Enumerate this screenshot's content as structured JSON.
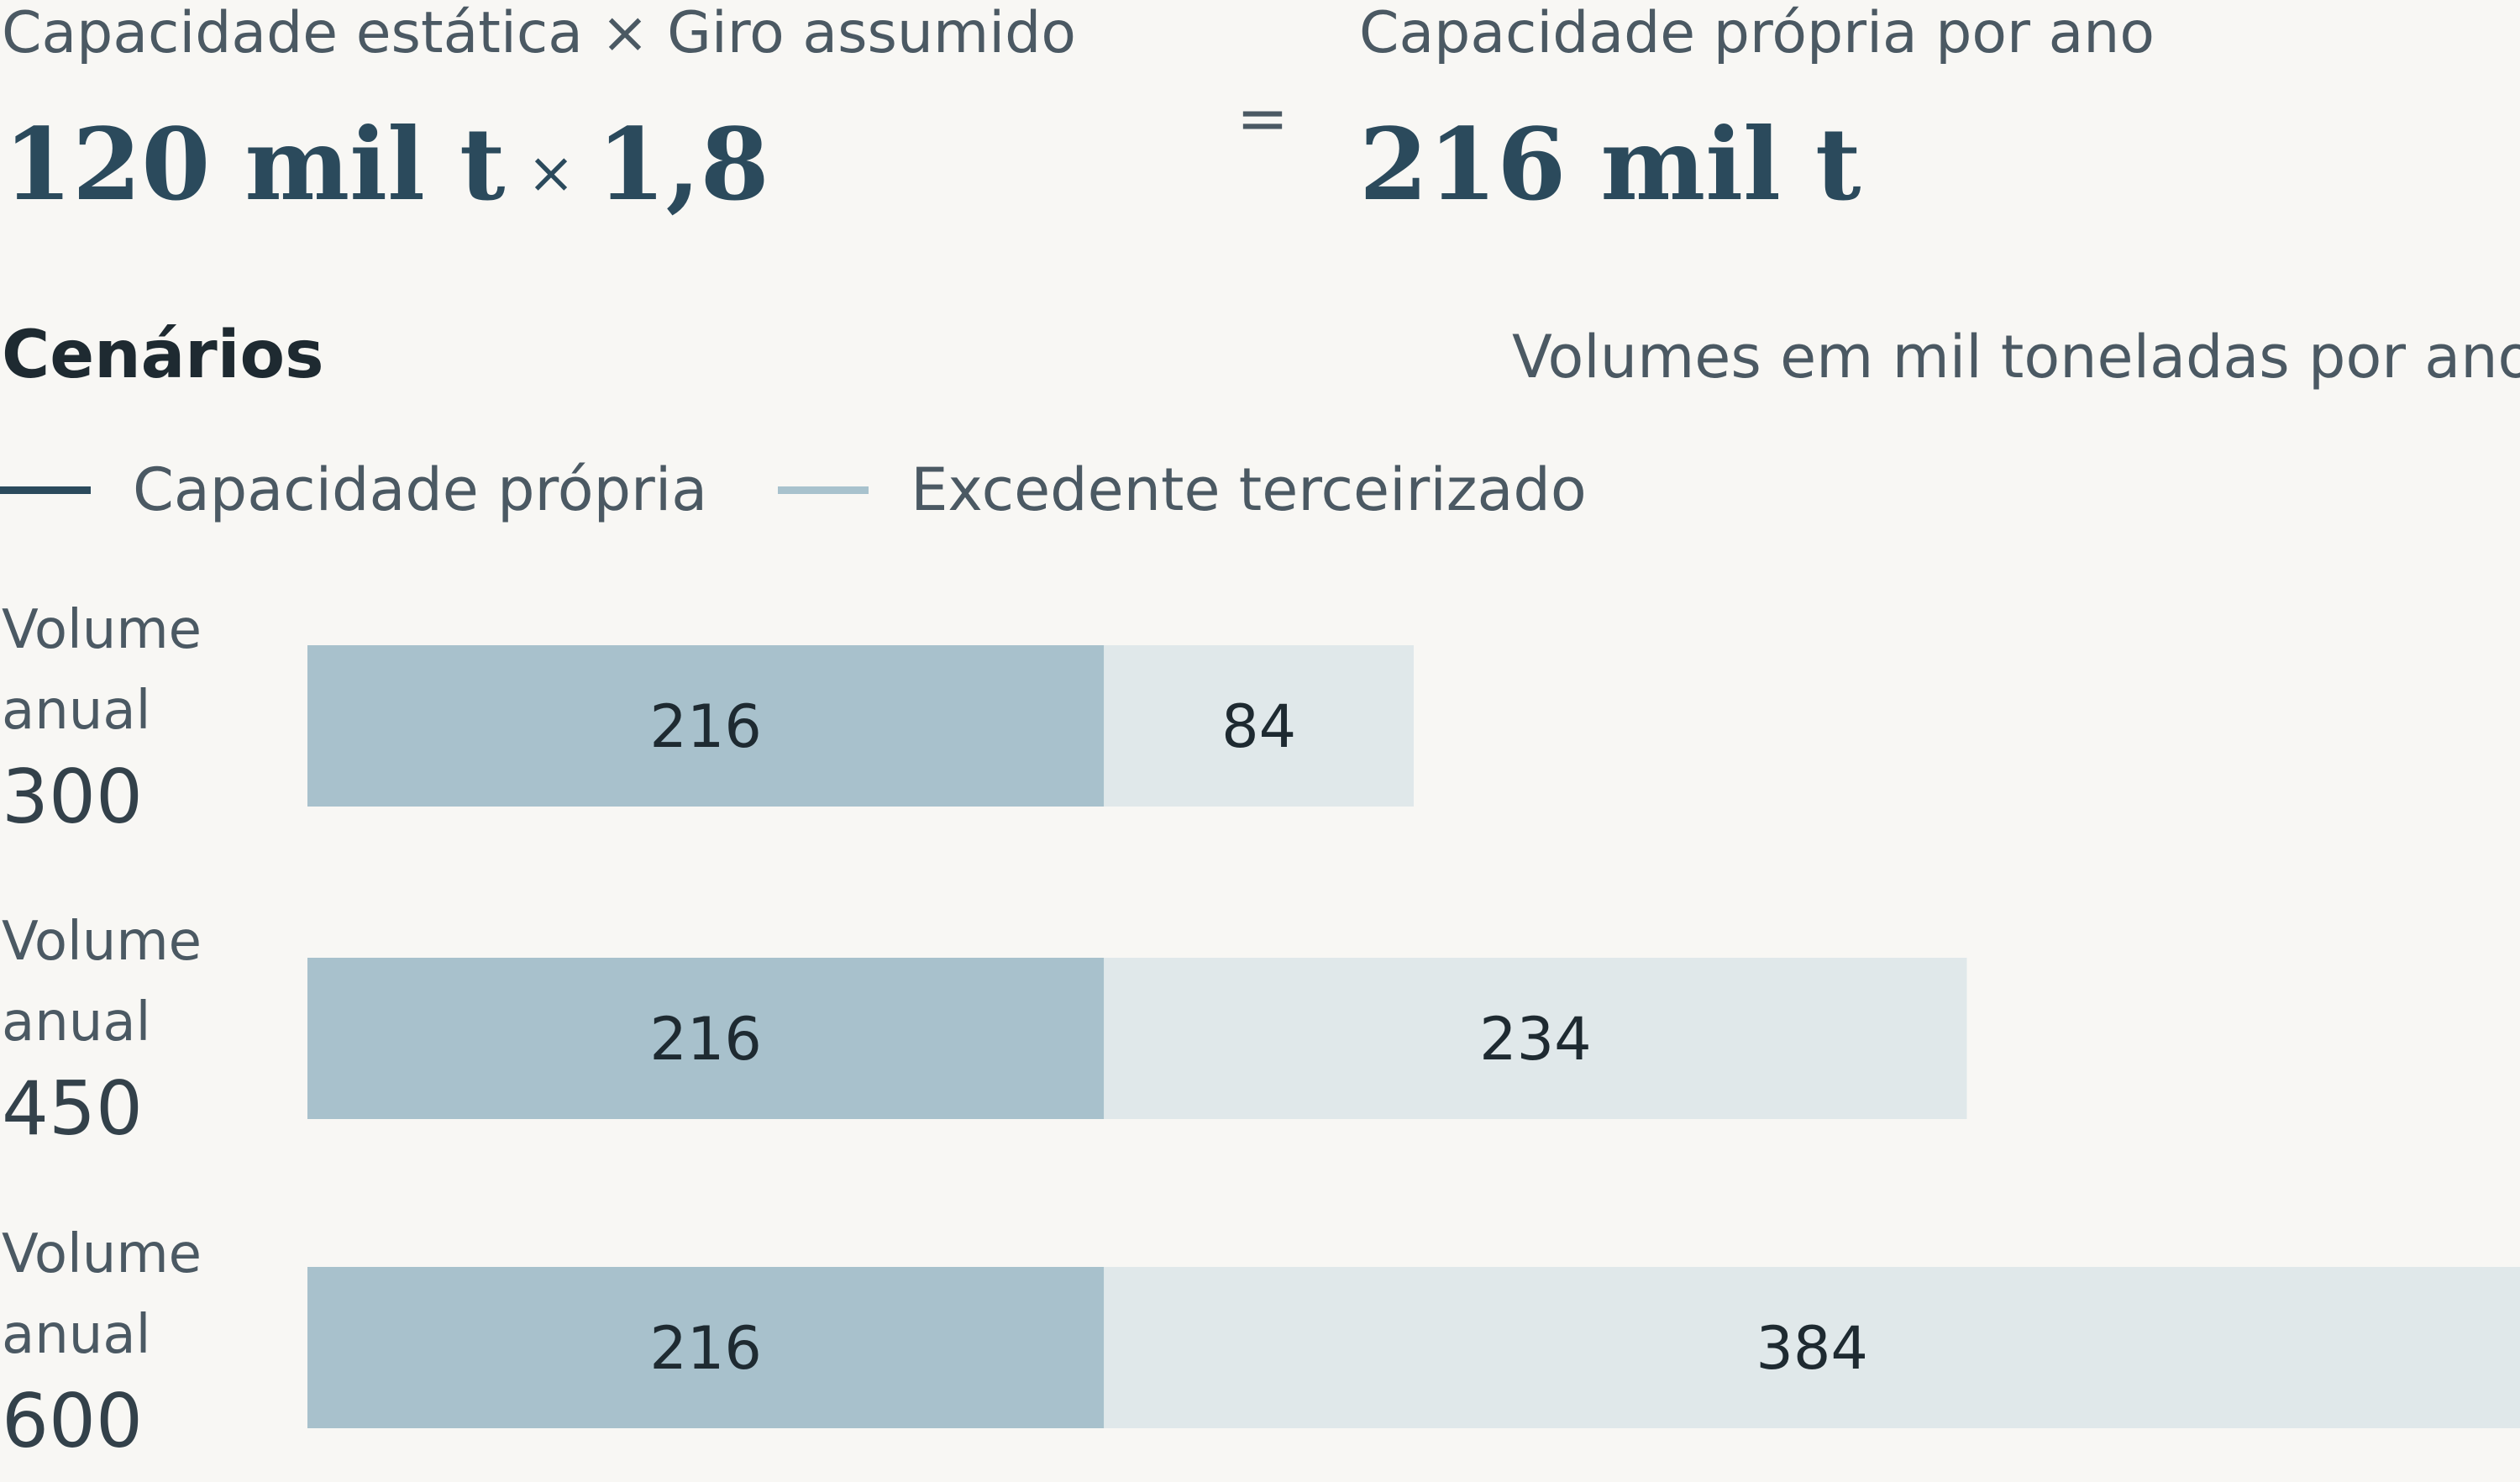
{
  "formula": {
    "left_label": "Capacidade estática × Giro assumido",
    "capacity": "120 mil t",
    "times": "×",
    "turnover": "1,8",
    "equals": "=",
    "right_label": "Capacidade própria por ano",
    "result": "216 mil t"
  },
  "section": {
    "title": "Cenários",
    "subtitle": "Volumes em mil toneladas por ano"
  },
  "legend": [
    {
      "label": "Capacidade própria",
      "color": "#2b4a5c"
    },
    {
      "label": "Excedente terceirizado",
      "color": "#a8c2cd"
    }
  ],
  "scenarios": [
    {
      "line1": "Volume",
      "line2": "anual",
      "value": "300"
    },
    {
      "line1": "Volume",
      "line2": "anual",
      "value": "450"
    },
    {
      "line1": "Volume",
      "line2": "anual",
      "value": "600"
    }
  ],
  "chart_data": {
    "type": "bar",
    "orientation": "horizontal",
    "stacked": true,
    "categories": [
      "300",
      "450",
      "600"
    ],
    "series": [
      {
        "name": "Capacidade própria",
        "values": [
          216,
          216,
          216
        ],
        "color": "#a8c1cc"
      },
      {
        "name": "Excedente terceirizado",
        "values": [
          84,
          234,
          384
        ],
        "color": "#e0e8ea"
      }
    ],
    "xlim": [
      0,
      600
    ],
    "grid": false,
    "legend_position": "top-left",
    "data_labels": true
  }
}
